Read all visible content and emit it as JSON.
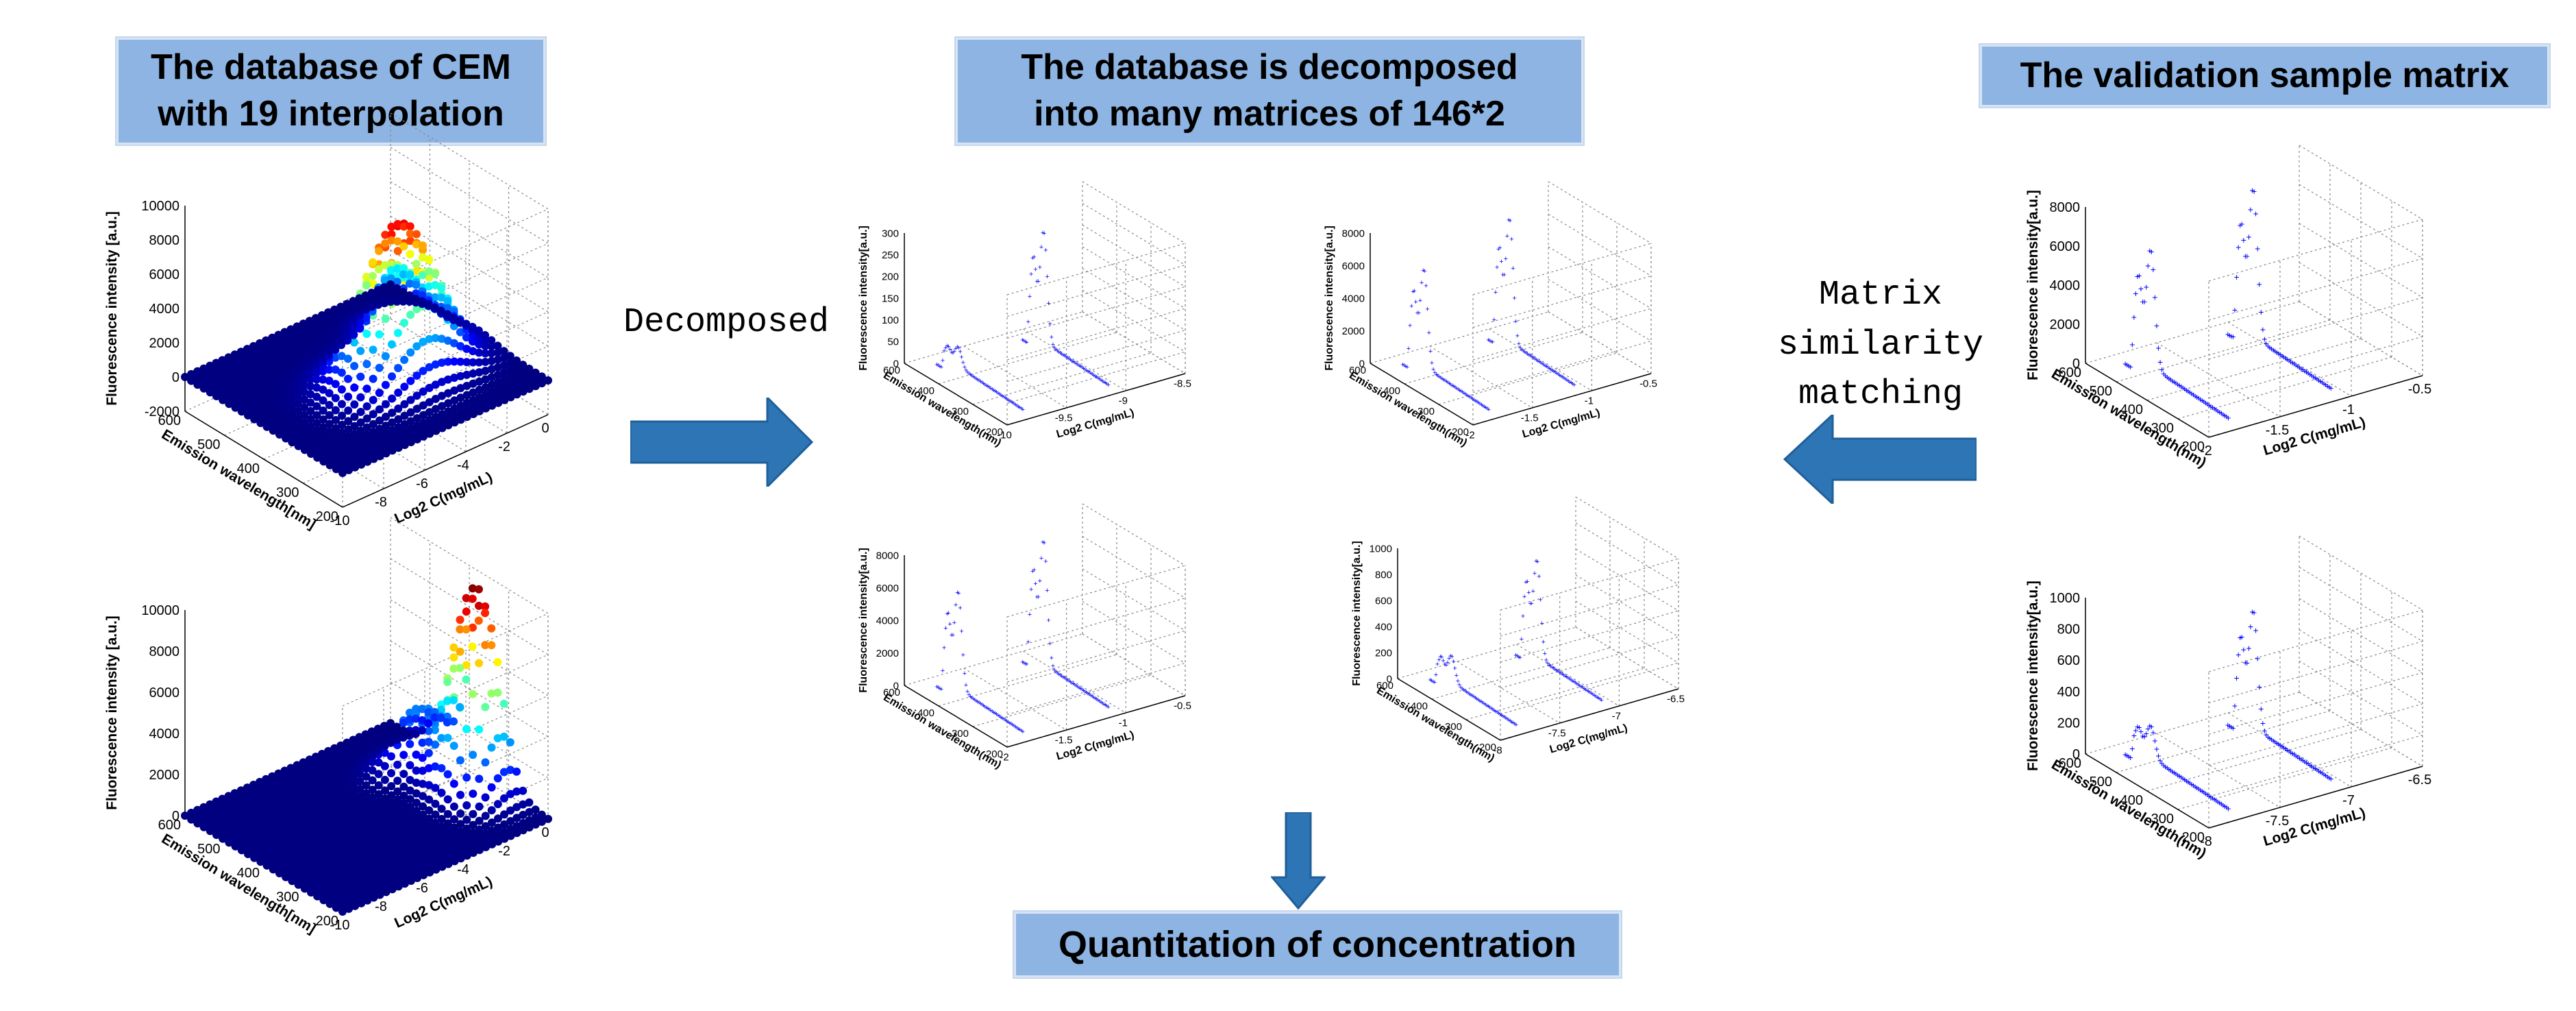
{
  "boxes": {
    "database_cem": [
      "The database of CEM",
      "with 19 interpolation"
    ],
    "decomposed": [
      "The database is decomposed",
      "into many matrices of 146*2"
    ],
    "validation": [
      "The validation sample matrix"
    ],
    "quantitation": [
      "Quantitation of concentration"
    ]
  },
  "labels": {
    "decomposed": "Decomposed",
    "matching": [
      "Matrix",
      "similarity",
      "matching"
    ]
  },
  "colors": {
    "box_fill": "#8db4e2",
    "arrow": "#2e75b6",
    "points": "#0000ff"
  },
  "chart_data": [
    {
      "id": "surface-top",
      "type": "surface",
      "zlabel": "Fluorescence intensity [a.u.]",
      "ylabel": "Emission wavelength[nm]",
      "xlabel": "Log2 C(mg/mL)",
      "z_ticks": [
        "10000",
        "8000",
        "6000",
        "4000",
        "2000",
        "0",
        "-2000"
      ],
      "y_ticks": [
        "600",
        "500",
        "400",
        "300",
        "200"
      ],
      "x_ticks": [
        "-10",
        "-8",
        "-6",
        "-4",
        "-2",
        "0"
      ]
    },
    {
      "id": "surface-bottom",
      "type": "surface",
      "zlabel": "Fluorescence intensity [a.u.]",
      "ylabel": "Emission wavelength[nm]",
      "xlabel": "Log2 C(mg/mL)",
      "z_ticks": [
        "10000",
        "8000",
        "6000",
        "4000",
        "2000",
        "0"
      ],
      "y_ticks": [
        "600",
        "500",
        "400",
        "300",
        "200"
      ],
      "x_ticks": [
        "-10",
        "-8",
        "-6",
        "-4",
        "-2",
        "0"
      ]
    },
    {
      "id": "matrix-1",
      "type": "scatter3d",
      "zlabel": "Fluorescence intensity[a.u.]",
      "ylabel": "Emission wavelength(nm)",
      "xlabel": "Log2 C(mg/mL)",
      "z_ticks": [
        "300",
        "250",
        "200",
        "150",
        "100",
        "50",
        "0"
      ],
      "y_ticks": [
        "600",
        "400",
        "300",
        "200"
      ],
      "x_ticks": [
        "-10",
        "-9.5",
        "-9",
        "-8.5"
      ],
      "peaks": [
        0.15,
        0.85
      ]
    },
    {
      "id": "matrix-2",
      "type": "scatter3d",
      "zlabel": "Fluorescence intensity[a.u.]",
      "ylabel": "Emission wavelength(nm)",
      "xlabel": "Log2 C(mg/mL)",
      "z_ticks": [
        "8000",
        "6000",
        "4000",
        "2000",
        "0"
      ],
      "y_ticks": [
        "600",
        "400",
        "300",
        "200"
      ],
      "x_ticks": [
        "-2",
        "-1.5",
        "-1",
        "-0.5"
      ],
      "peaks": [
        0.75,
        0.95
      ]
    },
    {
      "id": "matrix-3",
      "type": "scatter3d",
      "zlabel": "Fluorescence intensity[a.u.]",
      "ylabel": "Emission wavelength(nm)",
      "xlabel": "Log2 C(mg/mL)",
      "z_ticks": [
        "8000",
        "6000",
        "4000",
        "2000",
        "0"
      ],
      "y_ticks": [
        "600",
        "400",
        "300",
        "200"
      ],
      "x_ticks": [
        "-2",
        "-1.5",
        "-1",
        "-0.5"
      ],
      "peaks": [
        0.75,
        0.95
      ]
    },
    {
      "id": "matrix-4",
      "type": "scatter3d",
      "zlabel": "Fluorescence intensity[a.u.]",
      "ylabel": "Emission wavelength(nm)",
      "xlabel": "Log2 C(mg/mL)",
      "z_ticks": [
        "1000",
        "800",
        "600",
        "400",
        "200",
        "0"
      ],
      "y_ticks": [
        "600",
        "400",
        "300",
        "200"
      ],
      "x_ticks": [
        "-8",
        "-7.5",
        "-7",
        "-6.5"
      ],
      "peaks": [
        0.2,
        0.75
      ]
    },
    {
      "id": "validation-1",
      "type": "scatter3d",
      "zlabel": "Fluorescence intensity[a.u.]",
      "ylabel": "Emission wavelength(nm)",
      "xlabel": "Log2 C(mg/mL)",
      "z_ticks": [
        "8000",
        "6000",
        "4000",
        "2000",
        "0"
      ],
      "y_ticks": [
        "600",
        "500",
        "400",
        "300",
        "200"
      ],
      "x_ticks": [
        "-2",
        "-1.5",
        "-1",
        "-0.5"
      ],
      "peaks": [
        0.75,
        0.95
      ]
    },
    {
      "id": "validation-2",
      "type": "scatter3d",
      "zlabel": "Fluorescence intensity[a.u.]",
      "ylabel": "Emission wavelength(nm)",
      "xlabel": "Log2 C(mg/mL)",
      "z_ticks": [
        "1000",
        "800",
        "600",
        "400",
        "200",
        "0"
      ],
      "y_ticks": [
        "600",
        "500",
        "400",
        "300",
        "200"
      ],
      "x_ticks": [
        "-8",
        "-7.5",
        "-7",
        "-6.5"
      ],
      "peaks": [
        0.2,
        0.75
      ]
    }
  ]
}
